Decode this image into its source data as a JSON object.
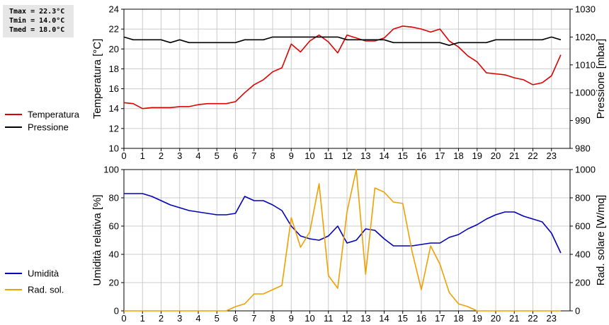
{
  "stats": {
    "tmax": "Tmax = 22.3°C",
    "tmin": "Tmin = 14.0°C",
    "tmed": "Tmed = 18.0°C"
  },
  "chart_data": [
    {
      "type": "line",
      "xlim": [
        0,
        24
      ],
      "xticks": [
        "0",
        "1",
        "2",
        "3",
        "4",
        "5",
        "6",
        "7",
        "8",
        "9",
        "10",
        "11",
        "12",
        "13",
        "14",
        "15",
        "16",
        "17",
        "18",
        "19",
        "20",
        "21",
        "22",
        "23"
      ],
      "ylabel_left": "Temperatura [°C]",
      "ylabel_right": "Pressione [mbar]",
      "ylim_left": [
        10,
        24
      ],
      "yticks_left": [
        "10",
        "12",
        "14",
        "16",
        "18",
        "20",
        "22",
        "24"
      ],
      "ylim_right": [
        980,
        1030
      ],
      "yticks_right": [
        "980",
        "990",
        "1000",
        "1010",
        "1020",
        "1030"
      ],
      "grid": true,
      "legend_position": "left",
      "series": [
        {
          "name": "Temperatura",
          "axis": "left",
          "color": "#dd0000",
          "x": [
            0,
            0.5,
            1,
            1.5,
            2,
            2.5,
            3,
            3.5,
            4,
            4.5,
            5,
            5.5,
            6,
            6.5,
            7,
            7.5,
            8,
            8.5,
            9,
            9.5,
            10,
            10.5,
            11,
            11.5,
            12,
            12.5,
            13,
            13.5,
            14,
            14.5,
            15,
            15.5,
            16,
            16.5,
            17,
            17.5,
            18,
            18.5,
            19,
            19.5,
            20,
            20.5,
            21,
            21.5,
            22,
            22.5,
            23,
            23.5
          ],
          "y": [
            14.6,
            14.5,
            14.0,
            14.1,
            14.1,
            14.1,
            14.2,
            14.2,
            14.4,
            14.5,
            14.5,
            14.5,
            14.7,
            15.6,
            16.4,
            16.9,
            17.7,
            18.1,
            20.5,
            19.7,
            20.8,
            21.4,
            20.7,
            19.6,
            21.4,
            21.1,
            20.8,
            20.8,
            21.1,
            22.0,
            22.3,
            22.2,
            22.0,
            21.7,
            22.0,
            20.8,
            20.2,
            19.3,
            18.7,
            17.6,
            17.5,
            17.4,
            17.1,
            16.9,
            16.4,
            16.6,
            17.3,
            19.4
          ]
        },
        {
          "name": "Pressione",
          "axis": "right",
          "color": "#000000",
          "x": [
            0,
            0.5,
            1,
            1.5,
            2,
            2.5,
            3,
            3.5,
            4,
            4.5,
            5,
            5.5,
            6,
            6.5,
            7,
            7.5,
            8,
            8.5,
            9,
            9.5,
            10,
            10.5,
            11,
            11.5,
            12,
            12.5,
            13,
            13.5,
            14,
            14.5,
            15,
            15.5,
            16,
            16.5,
            17,
            17.5,
            18,
            18.5,
            19,
            19.5,
            20,
            20.5,
            21,
            21.5,
            22,
            22.5,
            23,
            23.5
          ],
          "y": [
            1020,
            1019,
            1019,
            1019,
            1019,
            1018,
            1019,
            1018,
            1018,
            1018,
            1018,
            1018,
            1018,
            1019,
            1019,
            1019,
            1020,
            1020,
            1020,
            1020,
            1020,
            1020,
            1020,
            1020,
            1019,
            1019,
            1019,
            1019,
            1019,
            1018,
            1018,
            1018,
            1018,
            1018,
            1018,
            1017,
            1018,
            1018,
            1018,
            1018,
            1019,
            1019,
            1019,
            1019,
            1019,
            1019,
            1020,
            1019
          ]
        }
      ]
    },
    {
      "type": "line",
      "xlim": [
        0,
        24
      ],
      "xticks": [
        "0",
        "1",
        "2",
        "3",
        "4",
        "5",
        "6",
        "7",
        "8",
        "9",
        "10",
        "11",
        "12",
        "13",
        "14",
        "15",
        "16",
        "17",
        "18",
        "19",
        "20",
        "21",
        "22",
        "23"
      ],
      "ylabel_left": "Umidità relativa [%]",
      "ylabel_right": "Rad. solare [W/mq]",
      "ylim_left": [
        0,
        100
      ],
      "yticks_left": [
        "0",
        "20",
        "40",
        "60",
        "80",
        "100"
      ],
      "ylim_right": [
        0,
        1000
      ],
      "yticks_right": [
        "0",
        "200",
        "400",
        "600",
        "800",
        "1000"
      ],
      "grid": true,
      "legend_position": "left",
      "series": [
        {
          "name": "Umidità",
          "axis": "left",
          "color": "#0000bb",
          "x": [
            0,
            0.5,
            1,
            1.5,
            2,
            2.5,
            3,
            3.5,
            4,
            4.5,
            5,
            5.5,
            6,
            6.5,
            7,
            7.5,
            8,
            8.5,
            9,
            9.5,
            10,
            10.5,
            11,
            11.5,
            12,
            12.5,
            13,
            13.5,
            14,
            14.5,
            15,
            15.5,
            16,
            16.5,
            17,
            17.5,
            18,
            18.5,
            19,
            19.5,
            20,
            20.5,
            21,
            21.5,
            22,
            22.5,
            23,
            23.5
          ],
          "y": [
            83,
            83,
            83,
            81,
            78,
            75,
            73,
            71,
            70,
            69,
            68,
            68,
            69,
            81,
            78,
            78,
            75,
            71,
            60,
            53,
            51,
            50,
            53,
            60,
            48,
            50,
            58,
            57,
            51,
            46,
            46,
            46,
            47,
            48,
            48,
            52,
            54,
            58,
            61,
            65,
            68,
            70,
            70,
            67,
            65,
            63,
            55,
            41
          ]
        },
        {
          "name": "Rad. sol.",
          "axis": "right",
          "color": "#f0a000",
          "x": [
            0,
            0.5,
            1,
            1.5,
            2,
            2.5,
            3,
            3.5,
            4,
            4.5,
            5,
            5.5,
            6,
            6.5,
            7,
            7.5,
            8,
            8.5,
            9,
            9.5,
            10,
            10.5,
            11,
            11.5,
            12,
            12.5,
            13,
            13.5,
            14,
            14.5,
            15,
            15.5,
            16,
            16.5,
            17,
            17.5,
            18,
            18.5,
            19,
            19.5,
            20,
            20.5,
            21,
            21.5,
            22,
            22.5,
            23,
            23.5
          ],
          "y": [
            0,
            0,
            0,
            0,
            0,
            0,
            0,
            0,
            0,
            0,
            0,
            0,
            30,
            50,
            120,
            120,
            150,
            180,
            660,
            450,
            560,
            900,
            250,
            160,
            700,
            1000,
            260,
            870,
            840,
            770,
            760,
            420,
            150,
            460,
            330,
            130,
            50,
            30,
            0,
            0,
            0,
            0,
            0,
            0,
            0,
            0,
            0,
            0
          ]
        }
      ]
    }
  ]
}
